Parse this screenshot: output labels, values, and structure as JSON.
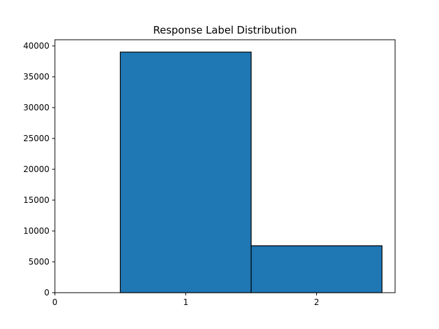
{
  "chart_data": {
    "type": "bar",
    "title": "Response Label Distribution",
    "xlabel": "",
    "ylabel": "",
    "categories": [
      "1",
      "2"
    ],
    "x_positions": [
      1,
      2
    ],
    "bar_width": 1,
    "values": [
      39000,
      7600
    ],
    "xlim": [
      0,
      2.6
    ],
    "ylim": [
      0,
      41000
    ],
    "x_ticks": [
      0,
      1,
      2
    ],
    "y_ticks": [
      0,
      5000,
      10000,
      15000,
      20000,
      25000,
      30000,
      35000,
      40000
    ],
    "grid": false,
    "legend": "none",
    "colors": {
      "bar_fill": "#1f77b4",
      "bar_edge": "#000000",
      "axes": "#000000",
      "background": "#ffffff"
    }
  }
}
